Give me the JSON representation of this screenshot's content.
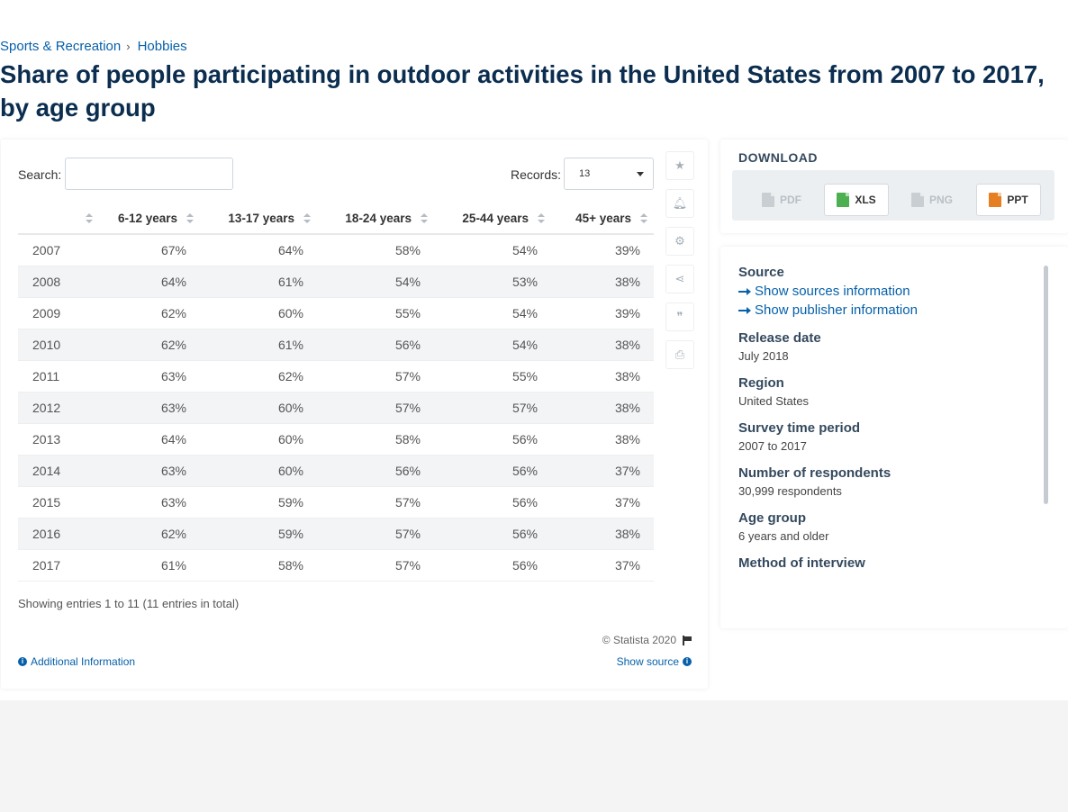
{
  "breadcrumb": {
    "items": [
      "Sports & Recreation",
      "Hobbies"
    ],
    "separator": "›"
  },
  "page": {
    "title": "Share of people participating in outdoor activities in the United States from 2007 to 2017, by age group"
  },
  "search": {
    "label": "Search:",
    "value": ""
  },
  "records": {
    "label": "Records:",
    "selected": "13"
  },
  "table": {
    "headers": [
      "",
      "6-12 years",
      "13-17 years",
      "18-24 years",
      "25-44 years",
      "45+ years"
    ],
    "rows": [
      [
        "2007",
        "67%",
        "64%",
        "58%",
        "54%",
        "39%"
      ],
      [
        "2008",
        "64%",
        "61%",
        "54%",
        "53%",
        "38%"
      ],
      [
        "2009",
        "62%",
        "60%",
        "55%",
        "54%",
        "39%"
      ],
      [
        "2010",
        "62%",
        "61%",
        "56%",
        "54%",
        "38%"
      ],
      [
        "2011",
        "63%",
        "62%",
        "57%",
        "55%",
        "38%"
      ],
      [
        "2012",
        "63%",
        "60%",
        "57%",
        "57%",
        "38%"
      ],
      [
        "2013",
        "64%",
        "60%",
        "58%",
        "56%",
        "38%"
      ],
      [
        "2014",
        "63%",
        "60%",
        "56%",
        "56%",
        "37%"
      ],
      [
        "2015",
        "63%",
        "59%",
        "57%",
        "56%",
        "37%"
      ],
      [
        "2016",
        "62%",
        "59%",
        "57%",
        "56%",
        "38%"
      ],
      [
        "2017",
        "61%",
        "58%",
        "57%",
        "56%",
        "37%"
      ]
    ]
  },
  "footer": {
    "entries_text": "Showing entries 1 to 11 (11 entries in total)",
    "copyright": "© Statista 2020",
    "additional_info": "Additional Information",
    "show_source": "Show source"
  },
  "tools": [
    "star-icon",
    "bell-icon",
    "gear-icon",
    "share-icon",
    "quote-icon",
    "print-icon"
  ],
  "download": {
    "title": "DOWNLOAD",
    "buttons": [
      {
        "label": "PDF",
        "enabled": false
      },
      {
        "label": "XLS",
        "enabled": true
      },
      {
        "label": "PNG",
        "enabled": false
      },
      {
        "label": "PPT",
        "enabled": true
      }
    ]
  },
  "info": {
    "source_heading": "Source",
    "show_sources": "Show sources information",
    "show_publisher": "Show publisher information",
    "release_heading": "Release date",
    "release_value": "July 2018",
    "region_heading": "Region",
    "region_value": "United States",
    "survey_heading": "Survey time period",
    "survey_value": "2007 to 2017",
    "respondents_heading": "Number of respondents",
    "respondents_value": "30,999 respondents",
    "age_heading": "Age group",
    "age_value": "6 years and older",
    "method_heading": "Method of interview"
  },
  "colors": {
    "link": "#0660aa",
    "title": "#0b2d4f",
    "xls": "#4caf50",
    "ppt": "#e67e22"
  }
}
